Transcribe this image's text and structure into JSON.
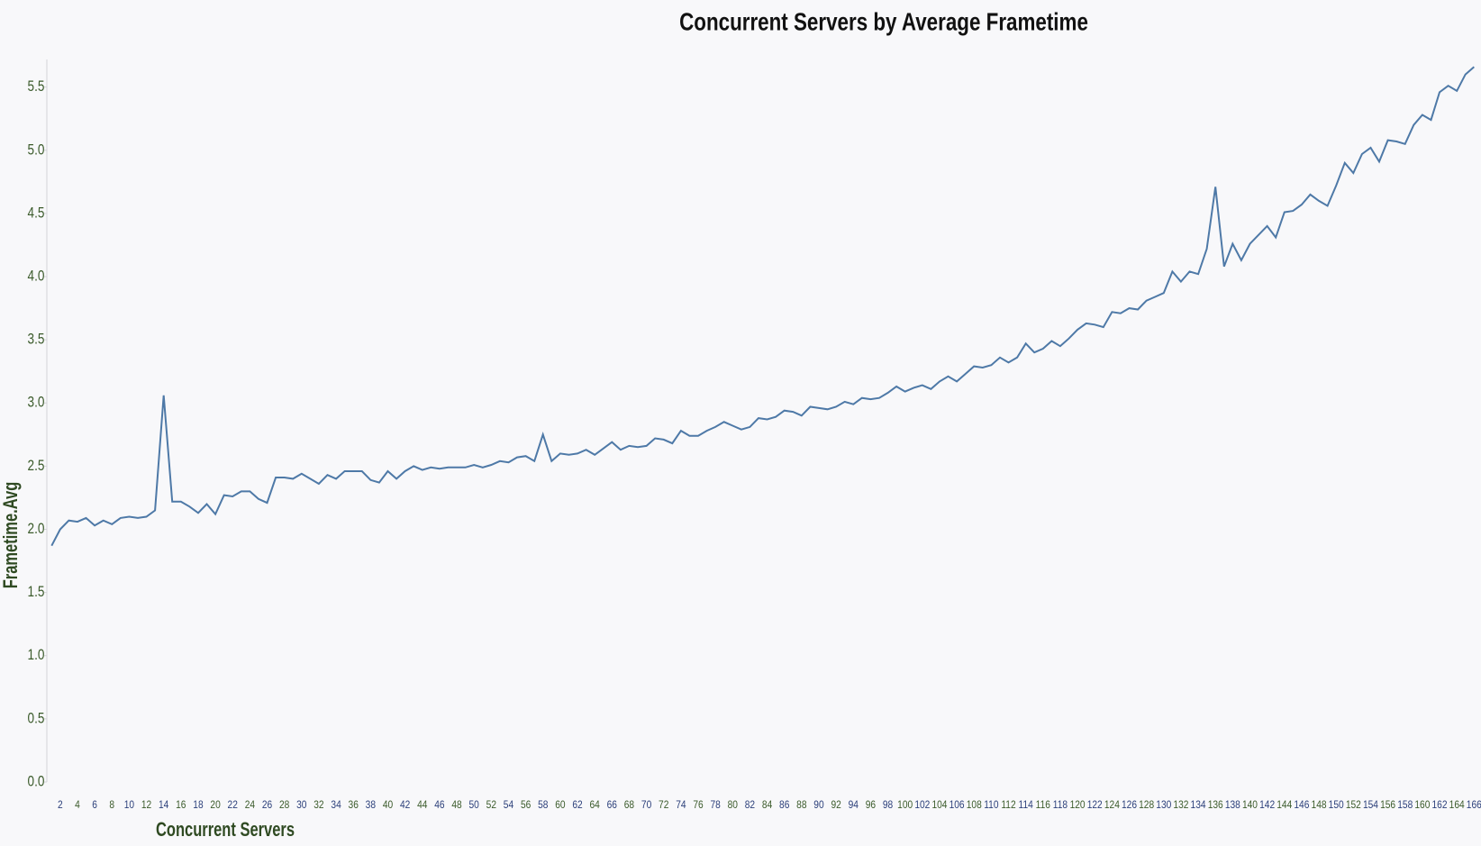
{
  "chart_data": {
    "type": "line",
    "title": "Concurrent Servers by Average Frametime",
    "x_label": "Concurrent Servers",
    "y_label": "Frametime.Avg",
    "color": "#4e79a7",
    "x": [
      1,
      2,
      3,
      4,
      5,
      6,
      7,
      8,
      9,
      10,
      11,
      12,
      13,
      14,
      15,
      16,
      17,
      18,
      19,
      20,
      21,
      22,
      23,
      24,
      25,
      26,
      27,
      28,
      29,
      30,
      31,
      32,
      33,
      34,
      35,
      36,
      37,
      38,
      39,
      40,
      41,
      42,
      43,
      44,
      45,
      46,
      47,
      48,
      49,
      50,
      51,
      52,
      53,
      54,
      55,
      56,
      57,
      58,
      59,
      60,
      61,
      62,
      63,
      64,
      65,
      66,
      67,
      68,
      69,
      70,
      71,
      72,
      73,
      74,
      75,
      76,
      77,
      78,
      79,
      80,
      81,
      82,
      83,
      84,
      85,
      86,
      87,
      88,
      89,
      90,
      91,
      92,
      93,
      94,
      95,
      96,
      97,
      98,
      99,
      100,
      101,
      102,
      103,
      104,
      105,
      106,
      107,
      108,
      109,
      110,
      111,
      112,
      113,
      114,
      115,
      116,
      117,
      118,
      119,
      120,
      121,
      122,
      123,
      124,
      125,
      126,
      127,
      128,
      129,
      130,
      131,
      132,
      133,
      134,
      135,
      136,
      137,
      138,
      139,
      140,
      141,
      142,
      143,
      144,
      145,
      146,
      147,
      148,
      149,
      150,
      151,
      152,
      153,
      154,
      155,
      156,
      157,
      158,
      159,
      160,
      161,
      162,
      163,
      164,
      165,
      166
    ],
    "values": [
      1.87,
      2.0,
      2.07,
      2.06,
      2.09,
      2.03,
      2.07,
      2.04,
      2.09,
      2.1,
      2.09,
      2.1,
      2.15,
      3.06,
      2.22,
      2.22,
      2.18,
      2.13,
      2.2,
      2.12,
      2.27,
      2.26,
      2.3,
      2.3,
      2.24,
      2.21,
      2.41,
      2.41,
      2.4,
      2.44,
      2.4,
      2.36,
      2.43,
      2.4,
      2.46,
      2.46,
      2.46,
      2.39,
      2.37,
      2.46,
      2.4,
      2.46,
      2.5,
      2.47,
      2.49,
      2.48,
      2.49,
      2.49,
      2.49,
      2.51,
      2.49,
      2.51,
      2.54,
      2.53,
      2.57,
      2.58,
      2.54,
      2.75,
      2.54,
      2.6,
      2.59,
      2.6,
      2.63,
      2.59,
      2.64,
      2.69,
      2.63,
      2.66,
      2.65,
      2.66,
      2.72,
      2.71,
      2.68,
      2.78,
      2.74,
      2.74,
      2.78,
      2.81,
      2.85,
      2.82,
      2.79,
      2.81,
      2.88,
      2.87,
      2.89,
      2.94,
      2.93,
      2.9,
      2.97,
      2.96,
      2.95,
      2.97,
      3.01,
      2.99,
      3.04,
      3.03,
      3.04,
      3.08,
      3.13,
      3.09,
      3.12,
      3.14,
      3.11,
      3.17,
      3.21,
      3.17,
      3.23,
      3.29,
      3.28,
      3.3,
      3.36,
      3.32,
      3.36,
      3.47,
      3.4,
      3.43,
      3.49,
      3.45,
      3.51,
      3.58,
      3.63,
      3.62,
      3.6,
      3.72,
      3.71,
      3.75,
      3.74,
      3.81,
      3.84,
      3.87,
      4.04,
      3.96,
      4.04,
      4.02,
      4.22,
      4.71,
      4.08,
      4.26,
      4.13,
      4.26,
      4.33,
      4.4,
      4.31,
      4.51,
      4.52,
      4.57,
      4.65,
      4.6,
      4.56,
      4.72,
      4.9,
      4.82,
      4.97,
      5.02,
      4.91,
      5.08,
      5.07,
      5.05,
      5.2,
      5.28,
      5.24,
      5.46,
      5.51,
      5.47,
      5.6,
      5.66
    ],
    "xlim": [
      0.45,
      166.7
    ],
    "xticks": [
      2,
      4,
      6,
      8,
      10,
      12,
      14,
      16,
      18,
      20,
      22,
      24,
      26,
      28,
      30,
      32,
      34,
      36,
      38,
      40,
      42,
      44,
      46,
      48,
      50,
      52,
      54,
      56,
      58,
      60,
      62,
      64,
      66,
      68,
      70,
      72,
      74,
      76,
      78,
      80,
      82,
      84,
      86,
      88,
      90,
      92,
      94,
      96,
      98,
      100,
      102,
      104,
      106,
      108,
      110,
      112,
      114,
      116,
      118,
      120,
      122,
      124,
      126,
      128,
      130,
      132,
      134,
      136,
      138,
      140,
      142,
      144,
      146,
      148,
      150,
      152,
      154,
      156,
      158,
      160,
      162,
      164,
      166
    ],
    "ylim": [
      0,
      5.69
    ],
    "yticks": [
      {
        "value": 0,
        "label": "0.0"
      },
      0.5,
      {
        "value": 1,
        "label": "1.0"
      },
      1.5,
      {
        "value": 2,
        "label": "2.0"
      },
      2.5,
      {
        "value": 3,
        "label": "3.0"
      },
      3.5,
      {
        "value": 4,
        "label": "4.0"
      },
      4.5,
      {
        "value": 5,
        "label": "5.0"
      },
      5.5
    ],
    "grid": false
  }
}
